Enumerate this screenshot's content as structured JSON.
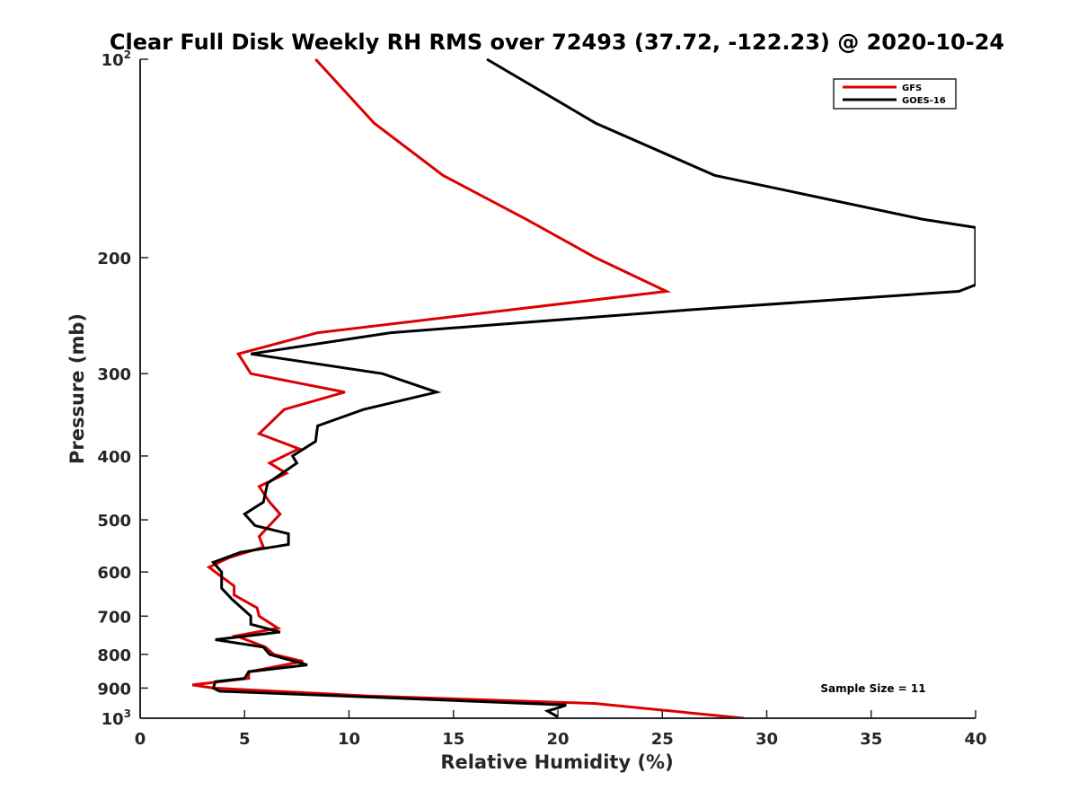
{
  "chart_data": {
    "type": "line",
    "title": "Clear Full Disk Weekly RH RMS over 72493 (37.72, -122.23) @ 2020-10-24",
    "xlabel": "Relative Humidity (%)",
    "ylabel": "Pressure (mb)",
    "xlim": [
      0,
      40
    ],
    "ylim": [
      100,
      1000
    ],
    "yscale": "log",
    "y_reversed": true,
    "x_ticks": [
      0,
      5,
      10,
      15,
      20,
      25,
      30,
      35,
      40
    ],
    "x_tick_labels": [
      "0",
      "5",
      "10",
      "15",
      "20",
      "25",
      "30",
      "35",
      "40"
    ],
    "y_ticks": [
      100,
      200,
      300,
      400,
      500,
      600,
      700,
      800,
      900,
      1000
    ],
    "y_tick_labels": [
      {
        "base": "10",
        "sup": "2"
      },
      {
        "base": "200",
        "sup": ""
      },
      {
        "base": "300",
        "sup": ""
      },
      {
        "base": "400",
        "sup": ""
      },
      {
        "base": "500",
        "sup": ""
      },
      {
        "base": "600",
        "sup": ""
      },
      {
        "base": "700",
        "sup": ""
      },
      {
        "base": "800",
        "sup": ""
      },
      {
        "base": "900",
        "sup": ""
      },
      {
        "base": "10",
        "sup": "3"
      }
    ],
    "legend_position": "top-right",
    "series": [
      {
        "name": "GFS",
        "color": "#dd0000",
        "x": [
          8.4,
          11.2,
          14.5,
          18.5,
          21.8,
          25.2,
          8.5,
          4.7,
          5.3,
          9.8,
          6.9,
          5.7,
          7.6,
          6.2,
          7.0,
          5.7,
          6.2,
          6.7,
          5.7,
          5.9,
          4.3,
          3.3,
          3.9,
          4.5,
          4.5,
          5.6,
          5.7,
          6.6,
          4.6,
          6.0,
          6.4,
          7.8,
          5.2,
          5.2,
          2.5,
          3.5,
          10.8,
          21.8,
          28.9
        ],
        "y": [
          100,
          125,
          150,
          175,
          200,
          225,
          260,
          280,
          300,
          320,
          340,
          370,
          390,
          410,
          425,
          445,
          470,
          490,
          530,
          550,
          570,
          590,
          610,
          630,
          650,
          680,
          700,
          730,
          750,
          780,
          800,
          820,
          850,
          870,
          890,
          900,
          925,
          950,
          1000
        ]
      },
      {
        "name": "GOES-16",
        "color": "#000000",
        "x": [
          16.6,
          21.8,
          27.5,
          37.5,
          40.0,
          40.0,
          39.2,
          26.3,
          12.0,
          5.3,
          11.6,
          14.2,
          10.7,
          8.5,
          8.4,
          7.3,
          7.5,
          6.1,
          5.9,
          5.0,
          5.5,
          7.1,
          7.1,
          4.8,
          3.5,
          3.9,
          3.9,
          3.9,
          4.4,
          5.3,
          5.3,
          6.7,
          3.6,
          5.9,
          6.2,
          8.0,
          5.2,
          5.0,
          3.6,
          3.5,
          3.8,
          11.5,
          20.4,
          20.0,
          19.5,
          20.0
        ],
        "y": [
          100,
          125,
          150,
          175,
          180,
          220,
          225,
          240,
          260,
          280,
          300,
          320,
          340,
          360,
          380,
          400,
          410,
          440,
          470,
          490,
          510,
          525,
          545,
          560,
          580,
          600,
          615,
          635,
          660,
          700,
          720,
          740,
          760,
          780,
          800,
          830,
          850,
          870,
          880,
          900,
          910,
          930,
          955,
          965,
          975,
          995
        ]
      }
    ],
    "annotations": [
      "Sample Size = 11"
    ]
  }
}
